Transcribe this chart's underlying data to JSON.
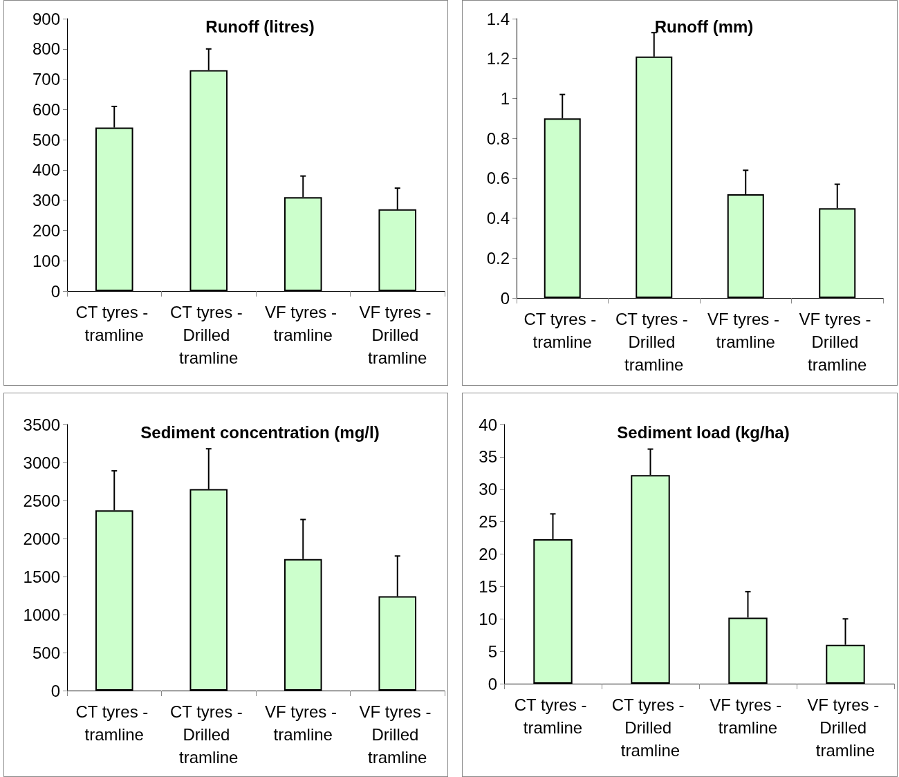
{
  "chart_data": [
    {
      "type": "bar",
      "title": "Runoff (litres)",
      "categories": [
        "CT tyres - tramline",
        "CT tyres - Drilled tramline",
        "VF tyres - tramline",
        "VF tyres - Drilled tramline"
      ],
      "values": [
        540,
        730,
        310,
        270
      ],
      "errors": [
        [
          540,
          610
        ],
        [
          730,
          800
        ],
        [
          310,
          380
        ],
        [
          270,
          340
        ]
      ],
      "color": "#ccffcc",
      "ylim": [
        0,
        900
      ],
      "yticks": [
        0,
        100,
        200,
        300,
        400,
        500,
        600,
        700,
        800,
        900
      ]
    },
    {
      "type": "bar",
      "title": "Runoff (mm)",
      "categories": [
        "CT tyres - tramline",
        "CT tyres - Drilled tramline",
        "VF tyres - tramline",
        "VF tyres - Drilled tramline"
      ],
      "values": [
        0.9,
        1.21,
        0.52,
        0.45
      ],
      "errors": [
        [
          0.9,
          1.02
        ],
        [
          1.21,
          1.33
        ],
        [
          0.52,
          0.64
        ],
        [
          0.45,
          0.57
        ]
      ],
      "color": "#ccffcc",
      "ylim": [
        0,
        1.4
      ],
      "yticks": [
        0,
        0.2,
        0.4,
        0.6,
        0.8,
        1,
        1.2,
        1.4
      ]
    },
    {
      "type": "bar",
      "title": "Sediment concentration (mg/l)",
      "categories": [
        "CT tyres - tramline",
        "CT tyres - Drilled tramline",
        "VF tyres - tramline",
        "VF tyres - Drilled tramline"
      ],
      "values": [
        2370,
        2650,
        1730,
        1240
      ],
      "errors": [
        [
          2370,
          2890
        ],
        [
          2650,
          3180
        ],
        [
          1730,
          2250
        ],
        [
          1240,
          1770
        ]
      ],
      "color": "#ccffcc",
      "ylim": [
        0,
        3500
      ],
      "yticks": [
        0,
        500,
        1000,
        1500,
        2000,
        2500,
        3000,
        3500
      ]
    },
    {
      "type": "bar",
      "title": "Sediment load (kg/ha)",
      "categories": [
        "CT tyres - tramline",
        "CT tyres - Drilled tramline",
        "VF tyres - tramline",
        "VF tyres - Drilled tramline"
      ],
      "values": [
        22.3,
        32.2,
        10.2,
        6.0
      ],
      "errors": [
        [
          22.3,
          26.2
        ],
        [
          32.2,
          36.2
        ],
        [
          10.2,
          14.2
        ],
        [
          6.0,
          10.0
        ]
      ],
      "color": "#ccffcc",
      "ylim": [
        0,
        40
      ],
      "yticks": [
        0,
        5,
        10,
        15,
        20,
        25,
        30,
        35,
        40
      ]
    }
  ]
}
